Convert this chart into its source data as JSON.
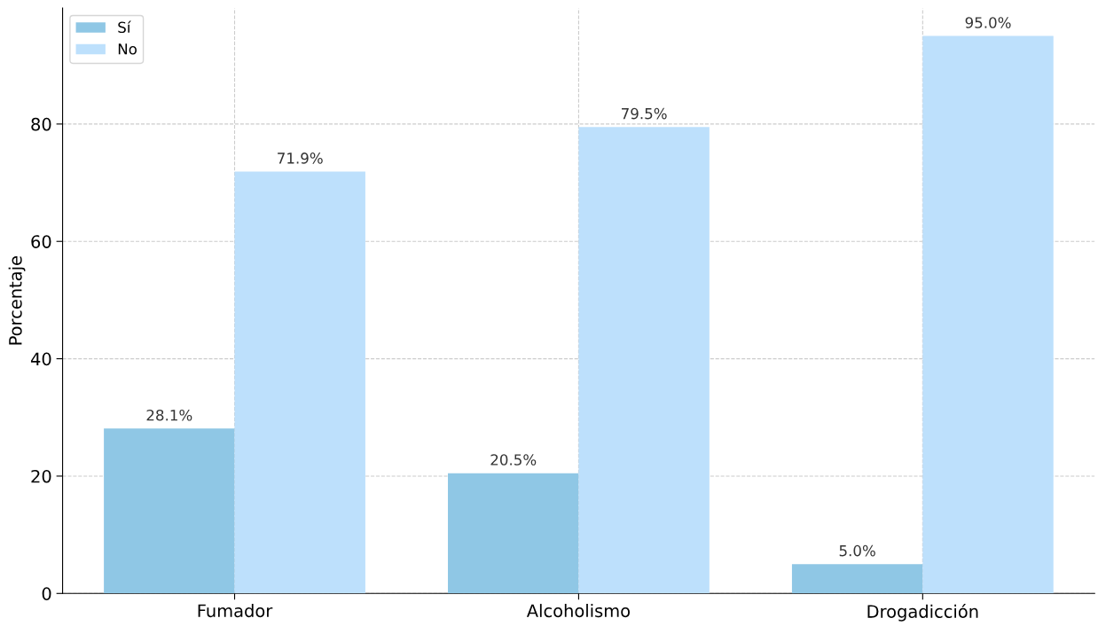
{
  "chart_data": {
    "type": "bar",
    "ylabel": "Porcentaje",
    "categories": [
      "Fumador",
      "Alcoholismo",
      "Drogadicción"
    ],
    "series": [
      {
        "name": "Sí",
        "color": "#8fc7e5",
        "values": [
          28.1,
          20.5,
          5.0
        ],
        "value_labels": [
          "28.1%",
          "20.5%",
          "5.0%"
        ]
      },
      {
        "name": "No",
        "color": "#bde0fc",
        "values": [
          71.9,
          79.5,
          95.0
        ],
        "value_labels": [
          "71.9%",
          "79.5%",
          "95.0%"
        ]
      }
    ],
    "ylim": [
      0,
      99.75
    ],
    "yticks": [
      0,
      20,
      40,
      60,
      80
    ],
    "grid": true,
    "legend": "top left"
  }
}
